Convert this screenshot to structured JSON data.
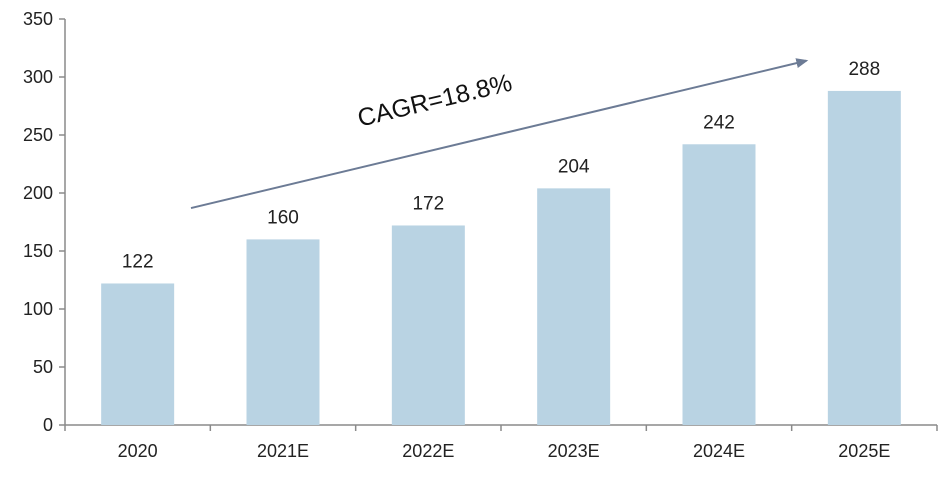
{
  "chart_data": {
    "type": "bar",
    "categories": [
      "2020",
      "2021E",
      "2022E",
      "2023E",
      "2024E",
      "2025E"
    ],
    "values": [
      122,
      160,
      172,
      204,
      242,
      288
    ],
    "data_labels": [
      "122",
      "160",
      "172",
      "204",
      "242",
      "288"
    ],
    "yticks": [
      "0",
      "50",
      "100",
      "150",
      "200",
      "250",
      "300",
      "350"
    ],
    "ylim": [
      0,
      350
    ],
    "title": "",
    "xlabel": "",
    "ylabel": "",
    "grid": false,
    "legend": "none",
    "annotation": {
      "text": "CAGR=18.8%",
      "arrow_from": {
        "category": "2021E",
        "value": 187
      },
      "arrow_to": {
        "category": "2025E",
        "value": 314
      }
    },
    "colors": {
      "bar": "#b9d3e3",
      "axis": "#8a8a8a",
      "arrow": "#6c7b95",
      "text": "#222222"
    }
  }
}
